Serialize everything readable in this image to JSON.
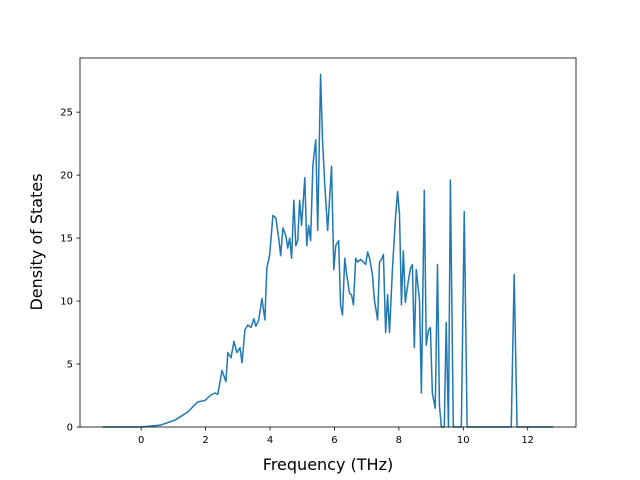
{
  "chart_data": {
    "type": "line",
    "x_label": "Frequency (THz)",
    "y_label": "Density of States",
    "color": "#1f77b4",
    "x": [
      -1.2,
      0,
      0.6,
      1.05,
      1.45,
      1.76,
      1.98,
      2.14,
      2.29,
      2.38,
      2.51,
      2.63,
      2.69,
      2.79,
      2.88,
      2.97,
      3.07,
      3.13,
      3.22,
      3.31,
      3.41,
      3.5,
      3.56,
      3.65,
      3.75,
      3.84,
      3.9,
      3.99,
      4.09,
      4.18,
      4.27,
      4.33,
      4.4,
      4.49,
      4.55,
      4.61,
      4.67,
      4.74,
      4.8,
      4.86,
      4.92,
      4.98,
      5.08,
      5.14,
      5.2,
      5.26,
      5.33,
      5.42,
      5.48,
      5.57,
      5.63,
      5.7,
      5.79,
      5.91,
      5.98,
      6.04,
      6.13,
      6.19,
      6.25,
      6.32,
      6.38,
      6.47,
      6.53,
      6.59,
      6.66,
      6.72,
      6.81,
      6.9,
      6.97,
      7.03,
      7.09,
      7.18,
      7.24,
      7.34,
      7.4,
      7.46,
      7.52,
      7.59,
      7.65,
      7.71,
      7.8,
      7.89,
      7.96,
      8.02,
      8.08,
      8.14,
      8.2,
      8.3,
      8.36,
      8.42,
      8.48,
      8.54,
      8.64,
      8.7,
      8.79,
      8.85,
      8.92,
      8.98,
      9.04,
      9.13,
      9.2,
      9.26,
      9.32,
      9.41,
      9.47,
      9.54,
      9.6,
      9.69,
      9.94,
      10.03,
      10.12,
      11.49,
      11.58,
      11.67,
      12.79
    ],
    "values": [
      0,
      0,
      0.15,
      0.55,
      1.2,
      2.0,
      2.1,
      2.5,
      2.7,
      2.6,
      4.5,
      3.6,
      5.9,
      5.5,
      6.8,
      5.9,
      6.3,
      5.1,
      7.7,
      8.1,
      7.9,
      8.6,
      8.0,
      8.5,
      10.2,
      8.5,
      12.6,
      13.7,
      16.8,
      16.6,
      15.0,
      13.6,
      15.8,
      15.2,
      14.2,
      15.0,
      13.4,
      18.0,
      14.4,
      14.8,
      18.0,
      16.0,
      19.8,
      14.4,
      16.0,
      14.8,
      20.8,
      22.8,
      15.6,
      28.0,
      22.8,
      19.2,
      15.6,
      20.7,
      12.5,
      14.4,
      14.8,
      9.7,
      8.9,
      13.4,
      12.1,
      10.6,
      10.5,
      9.7,
      13.4,
      13.1,
      13.3,
      13.1,
      12.9,
      13.9,
      13.4,
      12.1,
      10.1,
      8.5,
      13.1,
      13.3,
      13.7,
      7.5,
      10.5,
      7.5,
      12.5,
      16.4,
      18.7,
      16.9,
      9.7,
      14.0,
      9.9,
      11.7,
      12.6,
      12.9,
      6.3,
      12.5,
      10.1,
      2.7,
      18.8,
      6.5,
      7.7,
      7.9,
      2.7,
      1.5,
      12.9,
      1.7,
      0,
      0,
      8.3,
      0,
      19.6,
      0,
      0,
      17.1,
      0,
      0,
      12.1,
      0,
      0
    ],
    "xlim": [
      -1.9,
      13.5
    ],
    "ylim": [
      0,
      29.3
    ],
    "xticks": [
      0,
      2,
      4,
      6,
      8,
      10,
      12
    ],
    "yticks": [
      0,
      5,
      10,
      15,
      20,
      25
    ]
  }
}
